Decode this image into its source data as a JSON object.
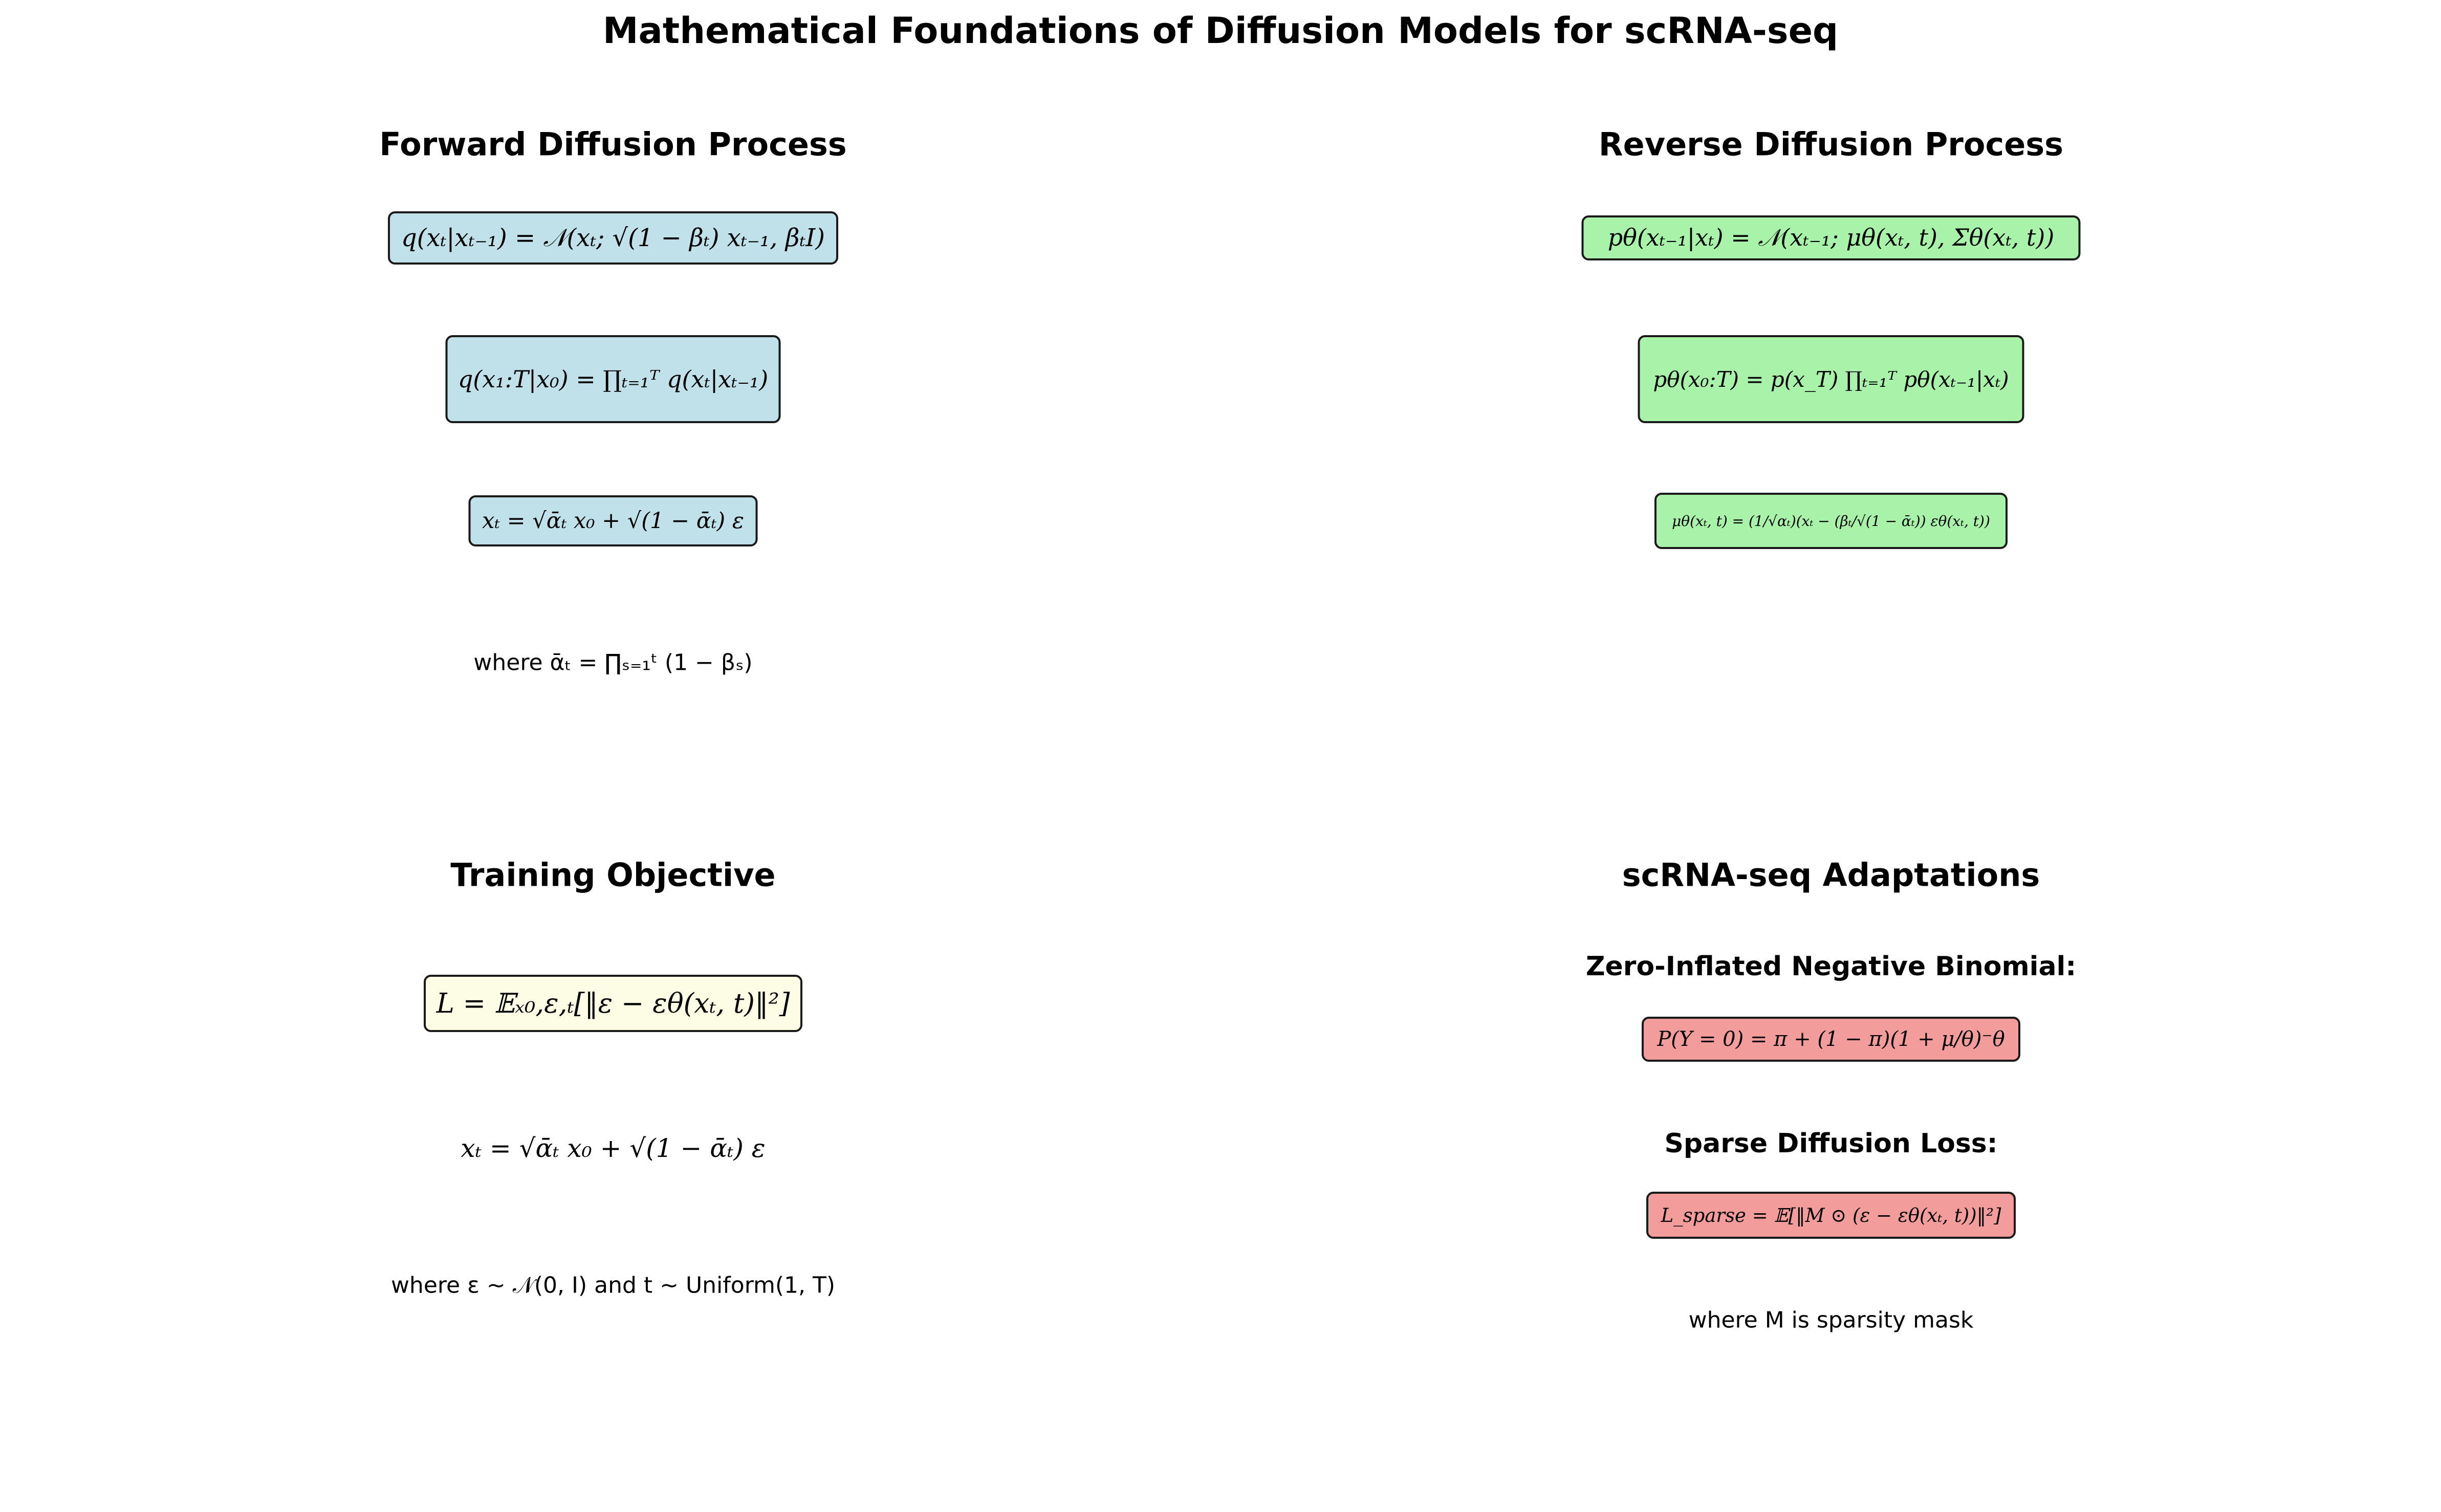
{
  "title": "Mathematical Foundations of Diffusion Models for scRNA-seq",
  "colors": {
    "forward_box": "#c0e0ea",
    "reverse_box": "#a9f2a9",
    "objective_box": "#fdfde6",
    "scrna_box": "#f29c9c",
    "box_border": "#1a1a1a"
  },
  "forward": {
    "title": "Forward Diffusion Process",
    "eq1": "q(xₜ|xₜ₋₁) = 𝒩(xₜ; √(1 − βₜ) xₜ₋₁, βₜI)",
    "eq2": "q(x₁:T|x₀) = ∏ₜ₌₁ᵀ q(xₜ|xₜ₋₁)",
    "eq3": "xₜ = √ᾱₜ x₀ + √(1 − ᾱₜ) ε",
    "note": "where ᾱₜ = ∏ₛ₌₁ᵗ (1 − βₛ)"
  },
  "reverse": {
    "title": "Reverse Diffusion Process",
    "eq1": "pθ(xₜ₋₁|xₜ) = 𝒩(xₜ₋₁; μθ(xₜ, t), Σθ(xₜ, t))",
    "eq2": "pθ(x₀:T) = p(x_T) ∏ₜ₌₁ᵀ pθ(xₜ₋₁|xₜ)",
    "eq3": "μθ(xₜ, t) = (1/√αₜ)(xₜ − (βₜ/√(1 − ᾱₜ)) εθ(xₜ, t))"
  },
  "training": {
    "title": "Training Objective",
    "eq1": "L = 𝔼ₓ₀,ε,ₜ[‖ε − εθ(xₜ, t)‖²]",
    "eq2": "xₜ = √ᾱₜ x₀ + √(1 − ᾱₜ) ε",
    "note": "where ε ~ 𝒩(0, I) and t ~ Uniform(1, T)"
  },
  "scrna": {
    "title": "scRNA-seq Adaptations",
    "zinb_title": "Zero-Inflated Negative Binomial:",
    "zinb_eq": "P(Y = 0) = π + (1 − π)(1 + μ/θ)⁻θ",
    "sparse_title": "Sparse Diffusion Loss:",
    "sparse_eq": "L_sparse = 𝔼[‖M ⊙ (ε − εθ(xₜ, t))‖²]",
    "note": "where M is sparsity mask"
  }
}
